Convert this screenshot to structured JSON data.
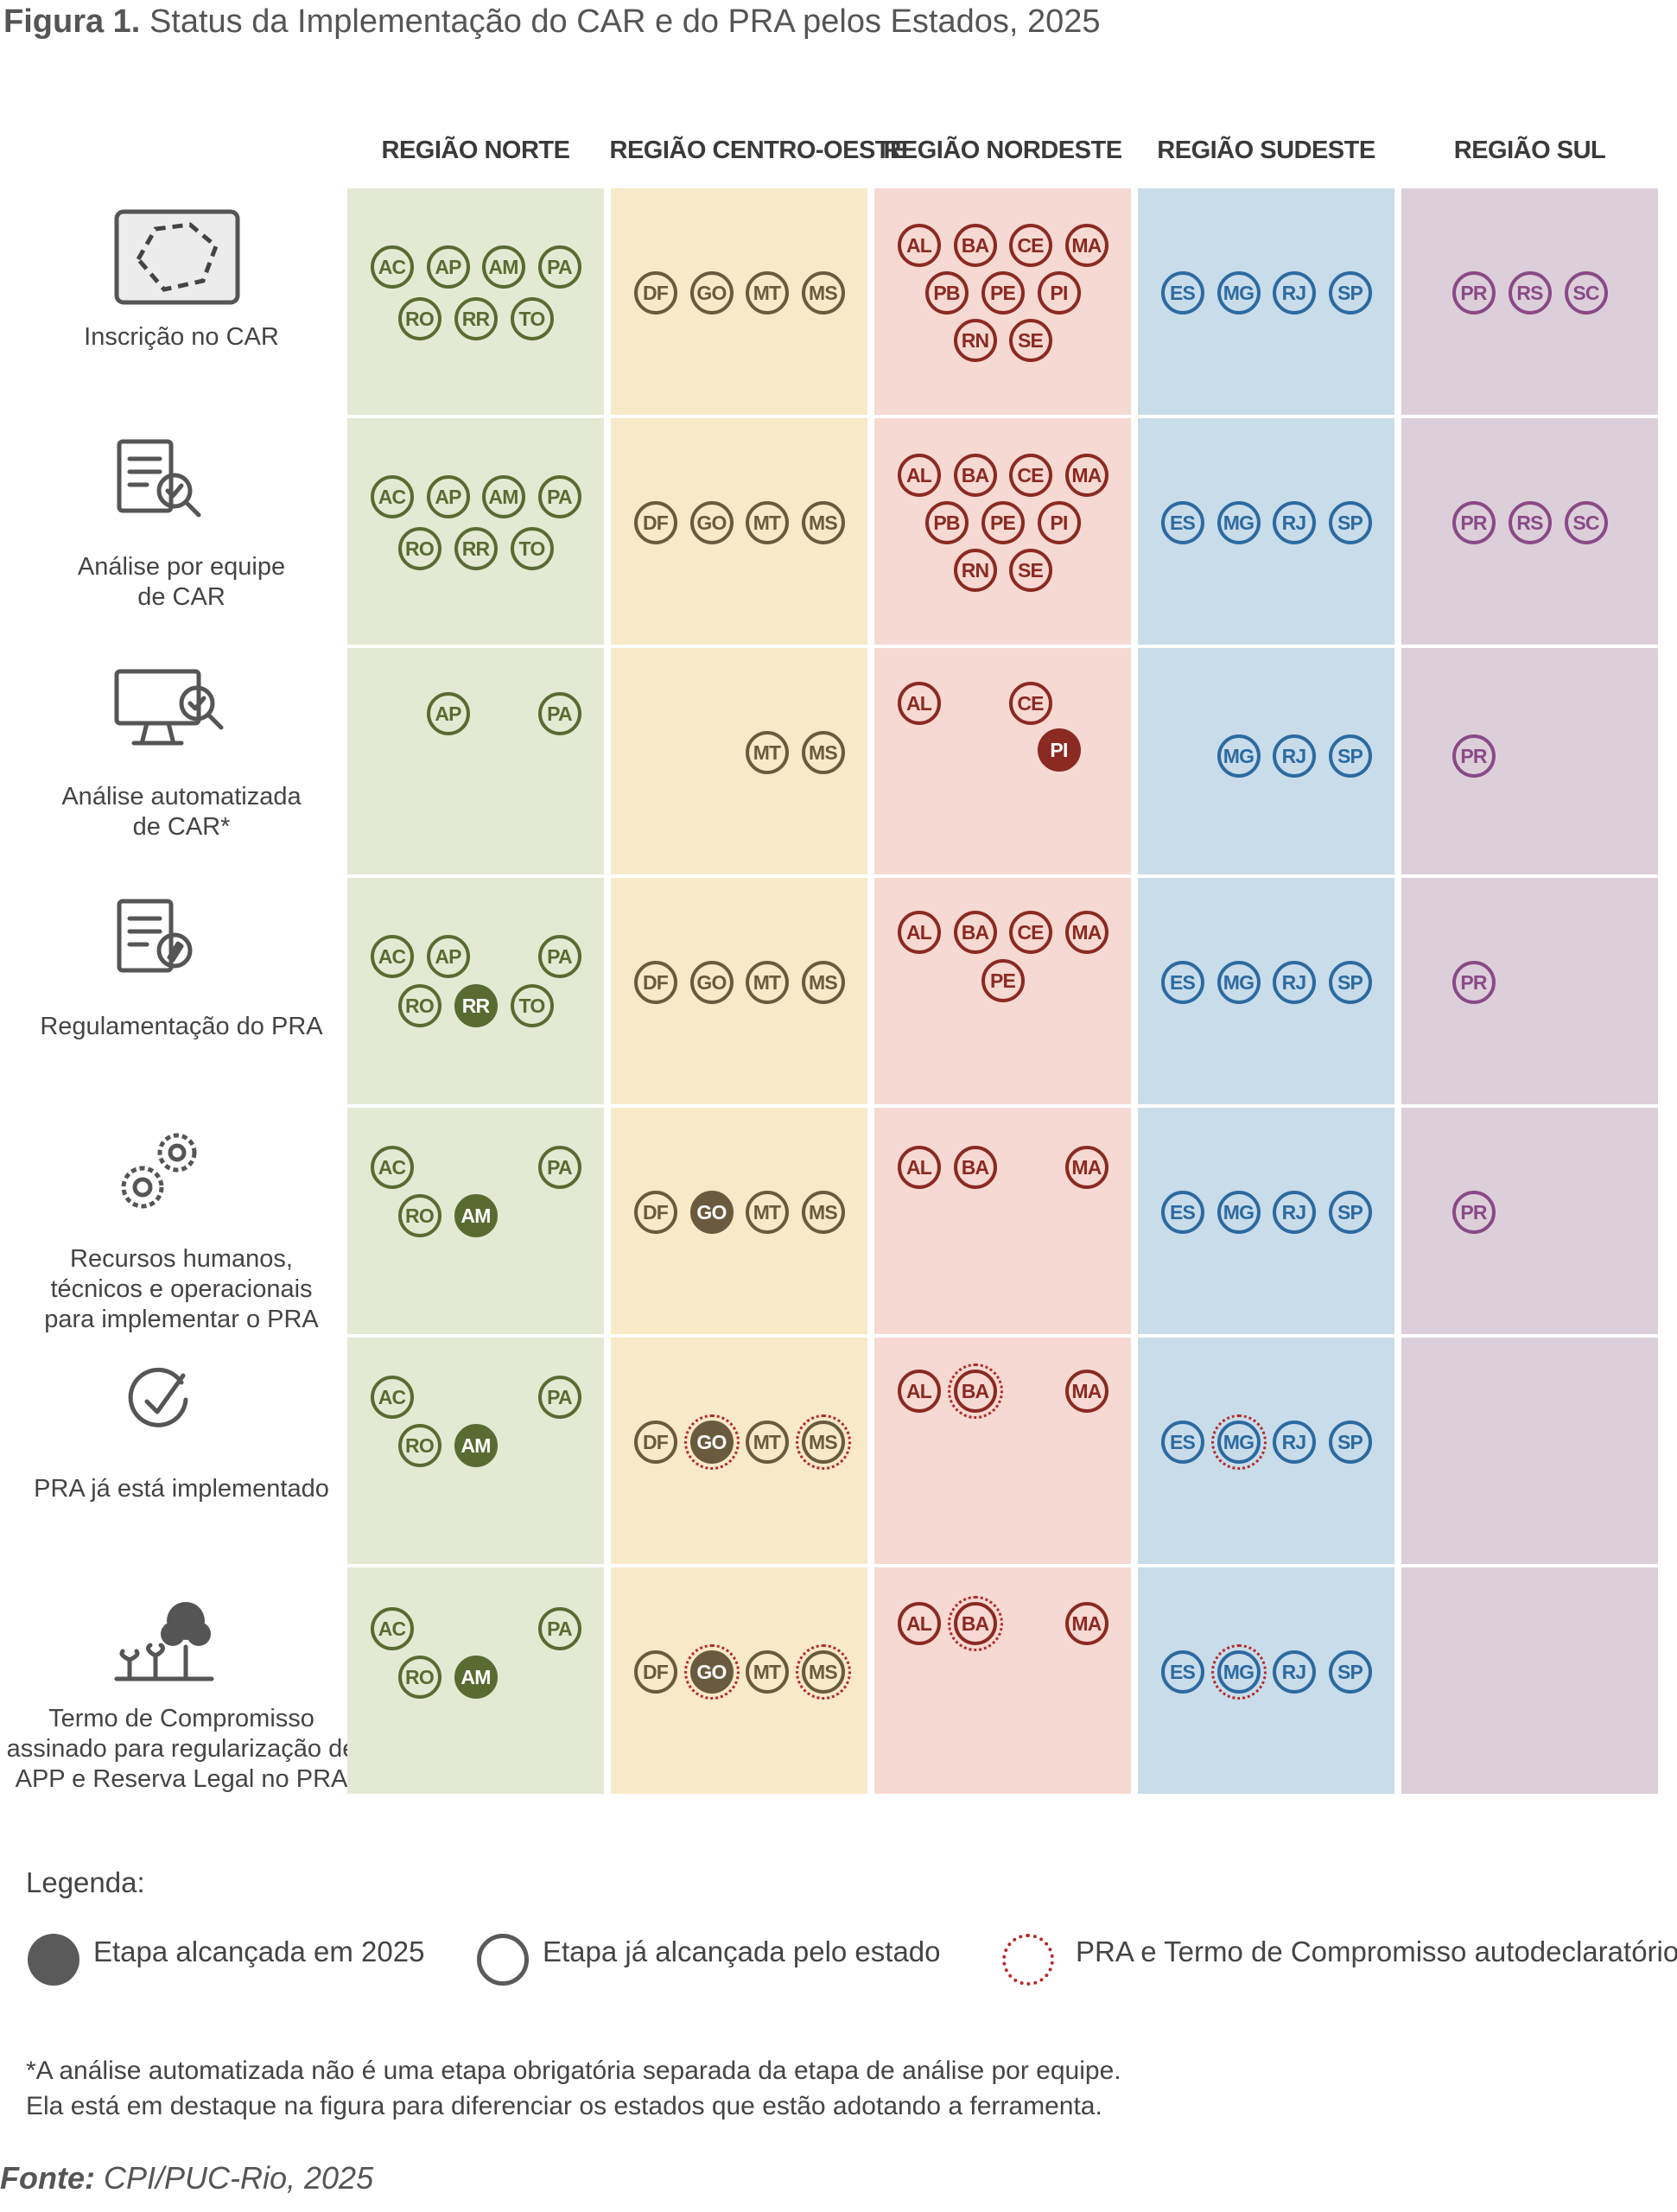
{
  "figure": {
    "label": "Figura 1.",
    "title": "Status da Implementação do CAR e do PRA pelos Estados, 2025"
  },
  "regions": [
    {
      "name": "REGIÃO NORTE",
      "color": "#5a6b32",
      "bg": "#e4e9d3"
    },
    {
      "name": "REGIÃO CENTRO-OESTE",
      "color": "#6a5a3e",
      "bg": "#f8e9c8"
    },
    {
      "name": "REGIÃO NORDESTE",
      "color": "#8b2a22",
      "bg": "#f6d9d2"
    },
    {
      "name": "REGIÃO SUDESTE",
      "color": "#2c6aa0",
      "bg": "#c9dcea"
    },
    {
      "name": "REGIÃO SUL",
      "color": "#8a4a86",
      "bg": "#dccfd9"
    }
  ],
  "rows": [
    {
      "label": "Inscrição no CAR",
      "icon": "map-icon"
    },
    {
      "label": "Análise por equipe\nde CAR",
      "icon": "document-search-icon"
    },
    {
      "label": "Análise automatizada\nde CAR*",
      "icon": "computer-check-icon"
    },
    {
      "label": "Regulamentação do PRA",
      "icon": "document-pen-icon"
    },
    {
      "label": "Recursos humanos,\ntécnicos e operacionais\npara implementar o PRA",
      "icon": "gears-icon"
    },
    {
      "label": "PRA já está implementado",
      "icon": "checkmark-icon"
    },
    {
      "label": "Termo de Compromisso\nassinado para regularização de\nAPP e Reserva Legal no PRA",
      "icon": "trees-icon"
    }
  ],
  "states": [
    [
      [
        {
          "s": "AC"
        },
        {
          "s": "AP"
        },
        {
          "s": "AM"
        },
        {
          "s": "PA"
        },
        {
          "s": "RO"
        },
        {
          "s": "RR"
        },
        {
          "s": "TO"
        }
      ],
      [
        {
          "s": "DF"
        },
        {
          "s": "GO"
        },
        {
          "s": "MT"
        },
        {
          "s": "MS"
        }
      ],
      [
        {
          "s": "AL"
        },
        {
          "s": "BA"
        },
        {
          "s": "CE"
        },
        {
          "s": "MA"
        },
        {
          "s": "PB"
        },
        {
          "s": "PE"
        },
        {
          "s": "PI"
        },
        {
          "s": "RN"
        },
        {
          "s": "SE"
        }
      ],
      [
        {
          "s": "ES"
        },
        {
          "s": "MG"
        },
        {
          "s": "RJ"
        },
        {
          "s": "SP"
        }
      ],
      [
        {
          "s": "PR"
        },
        {
          "s": "RS"
        },
        {
          "s": "SC"
        }
      ]
    ],
    [
      [
        {
          "s": "AC"
        },
        {
          "s": "AP"
        },
        {
          "s": "AM"
        },
        {
          "s": "PA"
        },
        {
          "s": "RO"
        },
        {
          "s": "RR"
        },
        {
          "s": "TO"
        }
      ],
      [
        {
          "s": "DF"
        },
        {
          "s": "GO"
        },
        {
          "s": "MT"
        },
        {
          "s": "MS"
        }
      ],
      [
        {
          "s": "AL"
        },
        {
          "s": "BA"
        },
        {
          "s": "CE"
        },
        {
          "s": "MA"
        },
        {
          "s": "PB"
        },
        {
          "s": "PE"
        },
        {
          "s": "PI"
        },
        {
          "s": "RN"
        },
        {
          "s": "SE"
        }
      ],
      [
        {
          "s": "ES"
        },
        {
          "s": "MG"
        },
        {
          "s": "RJ"
        },
        {
          "s": "SP"
        }
      ],
      [
        {
          "s": "PR"
        },
        {
          "s": "RS"
        },
        {
          "s": "SC"
        }
      ]
    ],
    [
      [
        {
          "s": "AP"
        },
        {
          "s": "PA"
        }
      ],
      [
        {
          "s": "MT"
        },
        {
          "s": "MS"
        }
      ],
      [
        {
          "s": "AL"
        },
        {
          "s": "CE"
        },
        {
          "s": "PI",
          "status": "2025"
        }
      ],
      [
        {
          "s": "MG"
        },
        {
          "s": "RJ"
        },
        {
          "s": "SP"
        }
      ],
      [
        {
          "s": "PR"
        }
      ]
    ],
    [
      [
        {
          "s": "AC"
        },
        {
          "s": "AP"
        },
        {
          "s": "PA"
        },
        {
          "s": "RO"
        },
        {
          "s": "RR",
          "status": "2025"
        },
        {
          "s": "TO"
        }
      ],
      [
        {
          "s": "DF"
        },
        {
          "s": "GO"
        },
        {
          "s": "MT"
        },
        {
          "s": "MS"
        }
      ],
      [
        {
          "s": "AL"
        },
        {
          "s": "BA"
        },
        {
          "s": "CE"
        },
        {
          "s": "MA"
        },
        {
          "s": "PE"
        }
      ],
      [
        {
          "s": "ES"
        },
        {
          "s": "MG"
        },
        {
          "s": "RJ"
        },
        {
          "s": "SP"
        }
      ],
      [
        {
          "s": "PR"
        }
      ]
    ],
    [
      [
        {
          "s": "AC"
        },
        {
          "s": "PA"
        },
        {
          "s": "RO"
        },
        {
          "s": "AM",
          "status": "2025"
        }
      ],
      [
        {
          "s": "DF"
        },
        {
          "s": "GO",
          "status": "2025"
        },
        {
          "s": "MT"
        },
        {
          "s": "MS"
        }
      ],
      [
        {
          "s": "AL"
        },
        {
          "s": "BA"
        },
        {
          "s": "MA"
        }
      ],
      [
        {
          "s": "ES"
        },
        {
          "s": "MG"
        },
        {
          "s": "RJ"
        },
        {
          "s": "SP"
        }
      ],
      [
        {
          "s": "PR"
        }
      ]
    ],
    [
      [
        {
          "s": "AC"
        },
        {
          "s": "PA"
        },
        {
          "s": "RO"
        },
        {
          "s": "AM",
          "status": "2025"
        }
      ],
      [
        {
          "s": "DF"
        },
        {
          "s": "GO",
          "status": "2025",
          "self": true
        },
        {
          "s": "MT"
        },
        {
          "s": "MS",
          "self": true
        }
      ],
      [
        {
          "s": "AL"
        },
        {
          "s": "BA",
          "self": true
        },
        {
          "s": "MA"
        }
      ],
      [
        {
          "s": "ES"
        },
        {
          "s": "MG",
          "self": true
        },
        {
          "s": "RJ"
        },
        {
          "s": "SP"
        }
      ],
      []
    ],
    [
      [
        {
          "s": "AC"
        },
        {
          "s": "PA"
        },
        {
          "s": "RO"
        },
        {
          "s": "AM",
          "status": "2025"
        }
      ],
      [
        {
          "s": "DF"
        },
        {
          "s": "GO",
          "status": "2025",
          "self": true
        },
        {
          "s": "MT"
        },
        {
          "s": "MS",
          "self": true
        }
      ],
      [
        {
          "s": "AL"
        },
        {
          "s": "BA",
          "self": true
        },
        {
          "s": "MA"
        }
      ],
      [
        {
          "s": "ES"
        },
        {
          "s": "MG",
          "self": true
        },
        {
          "s": "RJ"
        },
        {
          "s": "SP"
        }
      ],
      []
    ]
  ],
  "legend": {
    "title": "Legenda:",
    "items": [
      {
        "label": "Etapa alcançada em 2025"
      },
      {
        "label": "Etapa já alcançada pelo estado"
      },
      {
        "label": "PRA e Termo de Compromisso autodeclaratório"
      }
    ]
  },
  "footnote": {
    "line1": "*A análise automatizada não é uma etapa obrigatória separada da etapa de análise por equipe.",
    "line2": "Ela está em destaque na figura para diferenciar os estados que estão adotando a ferramenta."
  },
  "source": {
    "label": "Fonte:",
    "text": "CPI/PUC-Rio, 2025"
  }
}
